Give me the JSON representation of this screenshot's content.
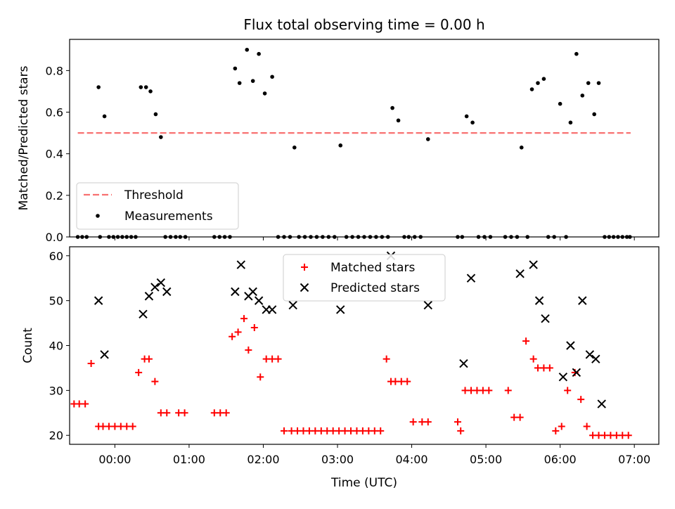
{
  "title": "Flux total observing time = 0.00 h",
  "xlabel": "Time (UTC)",
  "x_ticks": [
    "00:00",
    "01:00",
    "02:00",
    "03:00",
    "04:00",
    "05:00",
    "06:00",
    "07:00"
  ],
  "colors": {
    "threshold": "#f87171",
    "measurements": "#000000",
    "matched": "#ff0000",
    "predicted": "#000000"
  },
  "chart_data": [
    {
      "type": "scatter",
      "ylabel": "Matched/Predicted stars",
      "xlim": [
        -0.61,
        7.33
      ],
      "ylim": [
        0.0,
        0.95
      ],
      "y_ticks": [
        0.0,
        0.2,
        0.4,
        0.6,
        0.8
      ],
      "legend": {
        "placement": "bottom-left",
        "entries": [
          "Threshold",
          "Measurements"
        ]
      },
      "threshold": {
        "name": "Threshold",
        "value": 0.5,
        "x_range": [
          -0.5,
          6.95
        ]
      },
      "series": [
        {
          "name": "Measurements",
          "x": [
            -0.5,
            -0.44,
            -0.38,
            -0.22,
            -0.2,
            -0.14,
            -0.08,
            -0.02,
            0.04,
            0.1,
            0.16,
            0.22,
            0.28,
            0.35,
            0.42,
            0.48,
            0.55,
            0.62,
            0.68,
            0.75,
            0.82,
            0.88,
            0.95,
            1.34,
            1.41,
            1.48,
            1.55,
            1.62,
            1.68,
            1.78,
            1.86,
            1.94,
            2.02,
            2.12,
            2.2,
            2.28,
            2.36,
            2.42,
            2.48,
            2.56,
            2.64,
            2.72,
            2.8,
            2.88,
            2.96,
            3.04,
            3.12,
            3.2,
            3.28,
            3.36,
            3.44,
            3.52,
            3.6,
            3.68,
            3.74,
            3.82,
            3.9,
            3.96,
            4.04,
            4.12,
            4.22,
            4.62,
            4.68,
            4.74,
            4.82,
            4.9,
            4.98,
            5.06,
            5.26,
            5.34,
            5.42,
            5.48,
            5.56,
            5.62,
            5.7,
            5.78,
            5.84,
            5.92,
            6.0,
            6.08,
            6.14,
            6.22,
            6.3,
            6.38,
            6.46,
            6.52,
            6.6,
            6.66,
            6.72,
            6.78,
            6.84,
            6.9,
            6.94
          ],
          "y": [
            0,
            0,
            0,
            0.72,
            0,
            0.58,
            0,
            0,
            0,
            0,
            0,
            0,
            0,
            0.72,
            0.72,
            0.7,
            0.59,
            0.48,
            0,
            0,
            0,
            0,
            0,
            0,
            0,
            0,
            0,
            0.81,
            0.74,
            0.9,
            0.75,
            0.88,
            0.69,
            0.77,
            0,
            0,
            0,
            0.43,
            0,
            0,
            0,
            0,
            0,
            0,
            0,
            0.44,
            0,
            0,
            0,
            0,
            0,
            0,
            0,
            0,
            0.62,
            0.56,
            0,
            0,
            0,
            0,
            0.47,
            0,
            0,
            0.58,
            0.55,
            0,
            0,
            0,
            0,
            0,
            0,
            0.43,
            0,
            0.71,
            0.74,
            0.76,
            0,
            0,
            0.64,
            0,
            0.55,
            0.88,
            0.68,
            0.74,
            0.59,
            0.74,
            0,
            0,
            0,
            0,
            0,
            0,
            0
          ]
        }
      ]
    },
    {
      "type": "scatter",
      "ylabel": "Count",
      "xlim": [
        -0.61,
        7.33
      ],
      "ylim": [
        18,
        62
      ],
      "y_ticks": [
        20,
        30,
        40,
        50,
        60
      ],
      "legend": {
        "placement": "top-center",
        "entries": [
          "Matched stars",
          "Predicted stars"
        ]
      },
      "series": [
        {
          "name": "Matched stars",
          "marker": "plus",
          "x": [
            -0.55,
            -0.48,
            -0.4,
            -0.32,
            -0.22,
            -0.16,
            -0.08,
            0.0,
            0.08,
            0.16,
            0.24,
            0.32,
            0.4,
            0.46,
            0.54,
            0.62,
            0.7,
            0.86,
            0.94,
            1.34,
            1.42,
            1.5,
            1.58,
            1.66,
            1.74,
            1.8,
            1.88,
            1.96,
            2.04,
            2.12,
            2.2,
            2.28,
            2.38,
            2.46,
            2.54,
            2.62,
            2.7,
            2.78,
            2.86,
            2.94,
            3.02,
            3.1,
            3.18,
            3.26,
            3.34,
            3.42,
            3.5,
            3.58,
            3.66,
            3.72,
            3.78,
            3.86,
            3.94,
            4.02,
            4.14,
            4.22,
            4.62,
            4.66,
            4.72,
            4.8,
            4.88,
            4.96,
            5.04,
            5.3,
            5.38,
            5.46,
            5.54,
            5.64,
            5.7,
            5.78,
            5.86,
            5.94,
            6.02,
            6.1,
            6.2,
            6.28,
            6.36,
            6.44,
            6.52,
            6.6,
            6.68,
            6.76,
            6.84,
            6.92
          ],
          "y": [
            27,
            27,
            27,
            36,
            22,
            22,
            22,
            22,
            22,
            22,
            22,
            34,
            37,
            37,
            32,
            25,
            25,
            25,
            25,
            25,
            25,
            25,
            42,
            43,
            46,
            39,
            44,
            33,
            37,
            37,
            37,
            21,
            21,
            21,
            21,
            21,
            21,
            21,
            21,
            21,
            21,
            21,
            21,
            21,
            21,
            21,
            21,
            21,
            37,
            32,
            32,
            32,
            32,
            23,
            23,
            23,
            23,
            21,
            30,
            30,
            30,
            30,
            30,
            30,
            24,
            24,
            41,
            37,
            35,
            35,
            35,
            21,
            22,
            30,
            34,
            28,
            22,
            20,
            20,
            20,
            20,
            20,
            20,
            20
          ]
        },
        {
          "name": "Predicted stars",
          "marker": "cross",
          "x": [
            -0.22,
            -0.14,
            0.38,
            0.46,
            0.54,
            0.62,
            0.7,
            1.62,
            1.7,
            1.8,
            1.86,
            1.94,
            2.04,
            2.12,
            2.4,
            3.04,
            3.72,
            4.22,
            4.7,
            4.8,
            5.46,
            5.64,
            5.72,
            5.8,
            6.04,
            6.14,
            6.22,
            6.3,
            6.4,
            6.48,
            6.56
          ],
          "y": [
            50,
            38,
            47,
            51,
            53,
            54,
            52,
            52,
            58,
            51,
            52,
            50,
            48,
            48,
            49,
            48,
            60,
            49,
            36,
            55,
            56,
            58,
            50,
            46,
            33,
            40,
            34,
            50,
            38,
            37,
            27
          ]
        }
      ]
    }
  ]
}
